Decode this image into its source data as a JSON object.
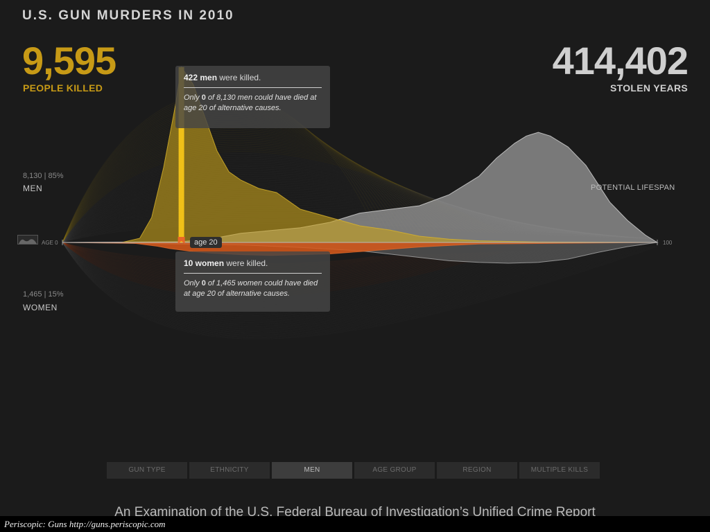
{
  "title": "U.S. GUN MURDERS IN 2010",
  "killed": {
    "value": "9,595",
    "label": "PEOPLE KILLED"
  },
  "stolen": {
    "value": "414,402",
    "label": "STOLEN YEARS"
  },
  "men": {
    "stat": "8,130 | 85%",
    "label": "MEN"
  },
  "women": {
    "stat": "1,465 | 15%",
    "label": "WOMEN"
  },
  "potential_label": "POTENTIAL LIFESPAN",
  "axis": {
    "start": "AGE 0",
    "end": "100"
  },
  "age_marker": "age 20",
  "tooltip_men": {
    "count": "422 men",
    "head_rest": " were killed.",
    "body_pre": "Only ",
    "body_num": "0",
    "body_post": " of 8,130 men could have died at age 20 of alternative causes."
  },
  "tooltip_women": {
    "count": "10 women",
    "head_rest": " were killed.",
    "body_pre": "Only ",
    "body_num": "0",
    "body_post": " of 1,465 women could have died at age 20 of alternative causes."
  },
  "tabs": [
    {
      "label": "GUN TYPE",
      "active": false
    },
    {
      "label": "ETHNICITY",
      "active": false
    },
    {
      "label": "MEN",
      "active": true
    },
    {
      "label": "AGE GROUP",
      "active": false
    },
    {
      "label": "REGION",
      "active": false
    },
    {
      "label": "MULTIPLE KILLS",
      "active": false
    }
  ],
  "subtitle": "An Examination of the U.S. Federal Bureau of Investigation’s Unified Crime Report",
  "credit": "Periscopic: Guns http://guns.periscopic.com",
  "colors": {
    "killed": "#c79a16",
    "men_area": "#c9a41c",
    "women_area": "#d9591a",
    "lifespan": "#9a9a9a",
    "highlight": "#f5c518",
    "marker": "#e8672a"
  },
  "chart_data": {
    "type": "area",
    "x_range": [
      0,
      100
    ],
    "selected_age": 20,
    "series": [
      {
        "key": "men_killed",
        "x": [
          0,
          10,
          13,
          15,
          17,
          19,
          20,
          22,
          24,
          26,
          28,
          30,
          33,
          36,
          40,
          45,
          50,
          55,
          60,
          65,
          70,
          80,
          100
        ],
        "y": [
          0,
          0,
          10,
          60,
          180,
          330,
          422,
          380,
          300,
          220,
          170,
          150,
          130,
          120,
          80,
          60,
          40,
          30,
          15,
          8,
          4,
          1,
          0
        ]
      },
      {
        "key": "women_killed",
        "x": [
          0,
          12,
          16,
          18,
          20,
          22,
          25,
          30,
          35,
          40,
          45,
          50,
          55,
          60,
          70,
          100
        ],
        "y": [
          0,
          1,
          5,
          8,
          10,
          12,
          14,
          16,
          17,
          16,
          15,
          12,
          9,
          6,
          2,
          0
        ]
      },
      {
        "key": "men_stolen",
        "x": [
          0,
          20,
          25,
          30,
          40,
          45,
          50,
          55,
          60,
          65,
          70,
          73,
          76,
          78,
          80,
          82,
          85,
          88,
          90,
          92,
          95,
          98,
          100
        ],
        "y": [
          0,
          2,
          10,
          25,
          40,
          55,
          80,
          90,
          100,
          130,
          180,
          230,
          270,
          290,
          300,
          290,
          260,
          210,
          160,
          110,
          60,
          20,
          0
        ]
      },
      {
        "key": "women_stolen",
        "x": [
          0,
          30,
          40,
          50,
          55,
          60,
          65,
          70,
          75,
          80,
          85,
          90,
          95,
          100
        ],
        "y": [
          0,
          3,
          6,
          10,
          14,
          18,
          22,
          24,
          25,
          24,
          20,
          12,
          5,
          0
        ]
      }
    ]
  }
}
